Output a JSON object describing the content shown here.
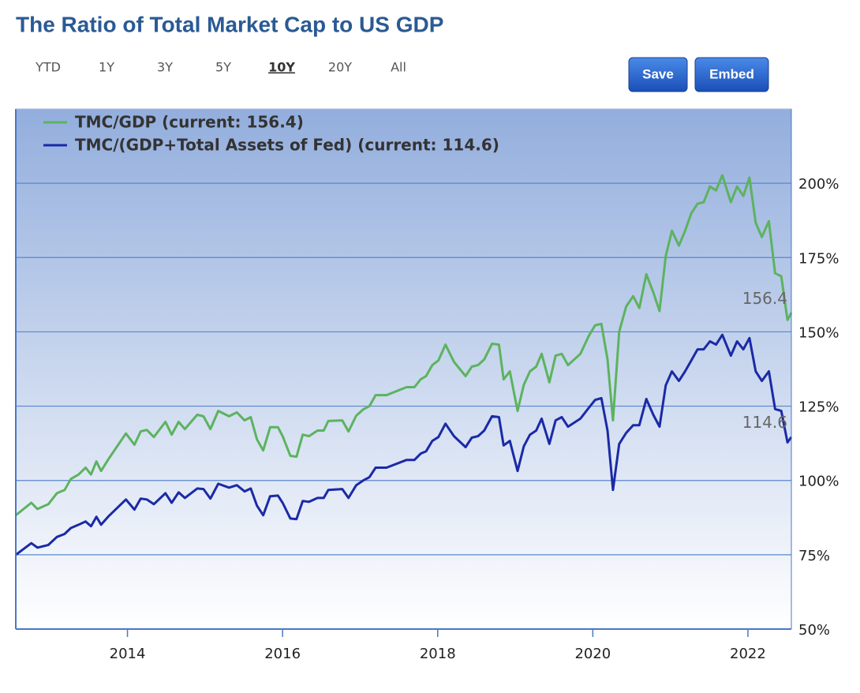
{
  "chart_data": {
    "type": "line",
    "title": "The Ratio of Total Market Cap to US GDP",
    "range_selector": {
      "options": [
        "YTD",
        "1Y",
        "3Y",
        "5Y",
        "10Y",
        "20Y",
        "All"
      ],
      "selected": 4
    },
    "actions": [
      "Save",
      "Embed"
    ],
    "x": [
      2012.56,
      2012.76,
      2012.84,
      2012.98,
      2013.09,
      2013.19,
      2013.27,
      2013.37,
      2013.46,
      2013.53,
      2013.6,
      2013.66,
      2013.75,
      2013.98,
      2014.09,
      2014.17,
      2014.25,
      2014.34,
      2014.49,
      2014.57,
      2014.66,
      2014.74,
      2014.9,
      2014.98,
      2015.07,
      2015.17,
      2015.31,
      2015.41,
      2015.51,
      2015.59,
      2015.67,
      2015.75,
      2015.84,
      2015.94,
      2016.0,
      2016.1,
      2016.18,
      2016.26,
      2016.34,
      2016.45,
      2016.53,
      2016.59,
      2016.77,
      2016.85,
      2016.95,
      2017.04,
      2017.12,
      2017.2,
      2017.34,
      2017.6,
      2017.7,
      2017.78,
      2017.85,
      2017.93,
      2018.01,
      2018.1,
      2018.21,
      2018.36,
      2018.44,
      2018.52,
      2018.6,
      2018.7,
      2018.79,
      2018.85,
      2018.93,
      2019.03,
      2019.11,
      2019.19,
      2019.27,
      2019.34,
      2019.44,
      2019.52,
      2019.6,
      2019.68,
      2019.84,
      2019.95,
      2020.03,
      2020.11,
      2020.19,
      2020.26,
      2020.34,
      2020.43,
      2020.52,
      2020.6,
      2020.69,
      2020.78,
      2020.86,
      2020.94,
      2021.02,
      2021.11,
      2021.19,
      2021.27,
      2021.35,
      2021.43,
      2021.51,
      2021.59,
      2021.67,
      2021.78,
      2021.86,
      2021.94,
      2022.02,
      2022.1,
      2022.18,
      2022.27,
      2022.35,
      2022.43,
      2022.51,
      2022.56
    ],
    "series": [
      {
        "name": "TMC/GDP (current: 156.4)",
        "color": "#5cb35f",
        "values": [
          88.3,
          92.5,
          90.4,
          92,
          95.7,
          96.8,
          100.5,
          102,
          104.3,
          102,
          106.4,
          103.2,
          107,
          115.8,
          112,
          116.5,
          117,
          114.6,
          119.7,
          115.4,
          119.7,
          117.3,
          122.1,
          121.6,
          117.3,
          123.4,
          121.6,
          122.9,
          120.2,
          121.3,
          113.8,
          110.1,
          117.9,
          117.9,
          114.9,
          108.3,
          108,
          115.4,
          114.9,
          116.8,
          116.8,
          120,
          120.2,
          116.5,
          121.8,
          123.9,
          125,
          128.7,
          128.7,
          131.4,
          131.4,
          134,
          135.1,
          138.8,
          140.4,
          145.7,
          139.9,
          135.1,
          138.3,
          138.8,
          140.7,
          146,
          145.7,
          134,
          136.7,
          123.4,
          132.2,
          136.7,
          138.3,
          142.6,
          133,
          142,
          142.6,
          138.8,
          142.6,
          148.7,
          152.2,
          152.7,
          140.7,
          120.2,
          150,
          158.5,
          162,
          158,
          169.4,
          163.3,
          157,
          175.5,
          184,
          179,
          184,
          189.9,
          193.1,
          193.6,
          198.9,
          197.6,
          202.7,
          193.6,
          198.9,
          195.7,
          201.9,
          186.7,
          181.9,
          187.2,
          169.7,
          168.7,
          154,
          156.4
        ]
      },
      {
        "name": "TMC/(GDP+Total Assets of Fed) (current: 114.6)",
        "color": "#1a2aa6",
        "values": [
          75,
          78.9,
          77.4,
          78.3,
          81,
          82,
          84,
          85.1,
          86.2,
          84.6,
          87.8,
          85.1,
          87.8,
          93.6,
          90.2,
          93.9,
          93.6,
          92,
          95.7,
          92.5,
          96,
          94.1,
          97.3,
          97.1,
          93.9,
          98.9,
          97.6,
          98.4,
          96.3,
          97.3,
          91.5,
          88.3,
          94.7,
          94.9,
          92.5,
          87.2,
          87,
          93.1,
          92.8,
          94.1,
          94.1,
          96.8,
          97.1,
          94.1,
          98.4,
          100,
          101.1,
          104.3,
          104.3,
          106.9,
          106.9,
          109,
          109.8,
          113.3,
          114.6,
          119.1,
          114.9,
          111.2,
          114.4,
          114.9,
          116.8,
          121.6,
          121.3,
          111.8,
          113.3,
          103.2,
          111.5,
          115.4,
          116.8,
          120.8,
          112.3,
          120.2,
          121.3,
          118.1,
          120.8,
          124.5,
          127.1,
          127.7,
          116.8,
          96.8,
          112.3,
          116,
          118.6,
          118.6,
          127.4,
          122.1,
          118.1,
          132,
          136.7,
          133.5,
          136.7,
          140.4,
          144.1,
          144.1,
          146.8,
          145.7,
          149,
          142,
          146.8,
          144.1,
          147.9,
          136.7,
          133.5,
          136.7,
          124,
          123.4,
          112.8,
          114.6
        ]
      }
    ],
    "xlim": [
      2012.56,
      2022.56
    ],
    "xticks": [
      2014,
      2016,
      2018,
      2020,
      2022
    ],
    "ylim": [
      50,
      225
    ],
    "yticks": [
      {
        "value": 50,
        "label": "50%"
      },
      {
        "value": 75,
        "label": "75%"
      },
      {
        "value": 100,
        "label": "100%"
      },
      {
        "value": 125,
        "label": "125%"
      },
      {
        "value": 150,
        "label": "150%"
      },
      {
        "value": 175,
        "label": "175%"
      },
      {
        "value": 200,
        "label": "200%"
      }
    ],
    "grid": true,
    "legend": "top-left"
  }
}
